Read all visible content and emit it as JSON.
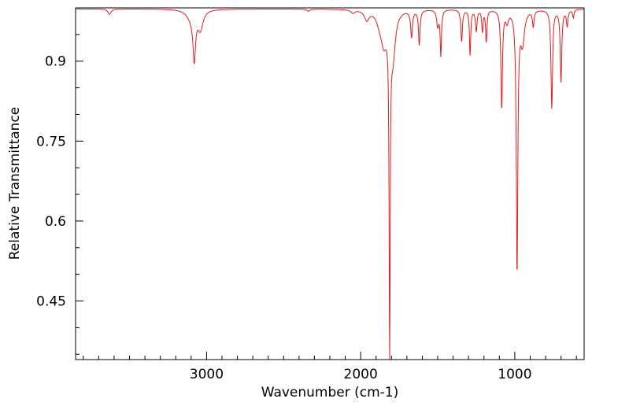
{
  "chart_data": {
    "type": "line",
    "title": "",
    "xlabel": "Wavenumber (cm-1)",
    "ylabel": "Relative Transmittance",
    "xlim": [
      3850,
      550
    ],
    "ylim": [
      0.34,
      1.0
    ],
    "x_ticks": [
      3000,
      2000,
      1000
    ],
    "x_tick_labels": [
      "3000",
      "2000",
      "1000"
    ],
    "y_ticks": [
      0.9,
      0.75,
      0.6,
      0.45
    ],
    "y_tick_labels": [
      "0.9",
      "0.75",
      "0.6",
      "0.45"
    ],
    "grid": false,
    "series": [
      {
        "name": "spectrum",
        "color": "#e8191c",
        "baseline": 0.998,
        "bands": [
          {
            "center": 3630,
            "depth": 0.01,
            "width": 12
          },
          {
            "center": 3080,
            "depth": 0.085,
            "width": 10
          },
          {
            "center": 3040,
            "depth": 0.035,
            "width": 20
          },
          {
            "center": 3100,
            "depth": 0.015,
            "width": 35
          },
          {
            "center": 2340,
            "depth": 0.004,
            "width": 10
          },
          {
            "center": 2050,
            "depth": 0.006,
            "width": 15
          },
          {
            "center": 1960,
            "depth": 0.018,
            "width": 18
          },
          {
            "center": 1880,
            "depth": 0.012,
            "width": 20
          },
          {
            "center": 1812,
            "depth": 0.64,
            "width": 4
          },
          {
            "center": 1790,
            "depth": 0.08,
            "width": 18
          },
          {
            "center": 1850,
            "depth": 0.06,
            "width": 25
          },
          {
            "center": 1670,
            "depth": 0.05,
            "width": 7
          },
          {
            "center": 1620,
            "depth": 0.065,
            "width": 6
          },
          {
            "center": 1480,
            "depth": 0.085,
            "width": 5
          },
          {
            "center": 1500,
            "depth": 0.03,
            "width": 8
          },
          {
            "center": 1345,
            "depth": 0.06,
            "width": 6
          },
          {
            "center": 1290,
            "depth": 0.085,
            "width": 5
          },
          {
            "center": 1250,
            "depth": 0.04,
            "width": 6
          },
          {
            "center": 1210,
            "depth": 0.04,
            "width": 5
          },
          {
            "center": 1185,
            "depth": 0.06,
            "width": 5
          },
          {
            "center": 1085,
            "depth": 0.185,
            "width": 6
          },
          {
            "center": 1050,
            "depth": 0.02,
            "width": 10
          },
          {
            "center": 985,
            "depth": 0.49,
            "width": 6
          },
          {
            "center": 950,
            "depth": 0.06,
            "width": 15
          },
          {
            "center": 880,
            "depth": 0.03,
            "width": 6
          },
          {
            "center": 760,
            "depth": 0.185,
            "width": 6
          },
          {
            "center": 700,
            "depth": 0.135,
            "width": 6
          },
          {
            "center": 660,
            "depth": 0.03,
            "width": 6
          },
          {
            "center": 620,
            "depth": 0.015,
            "width": 5
          }
        ]
      }
    ]
  }
}
